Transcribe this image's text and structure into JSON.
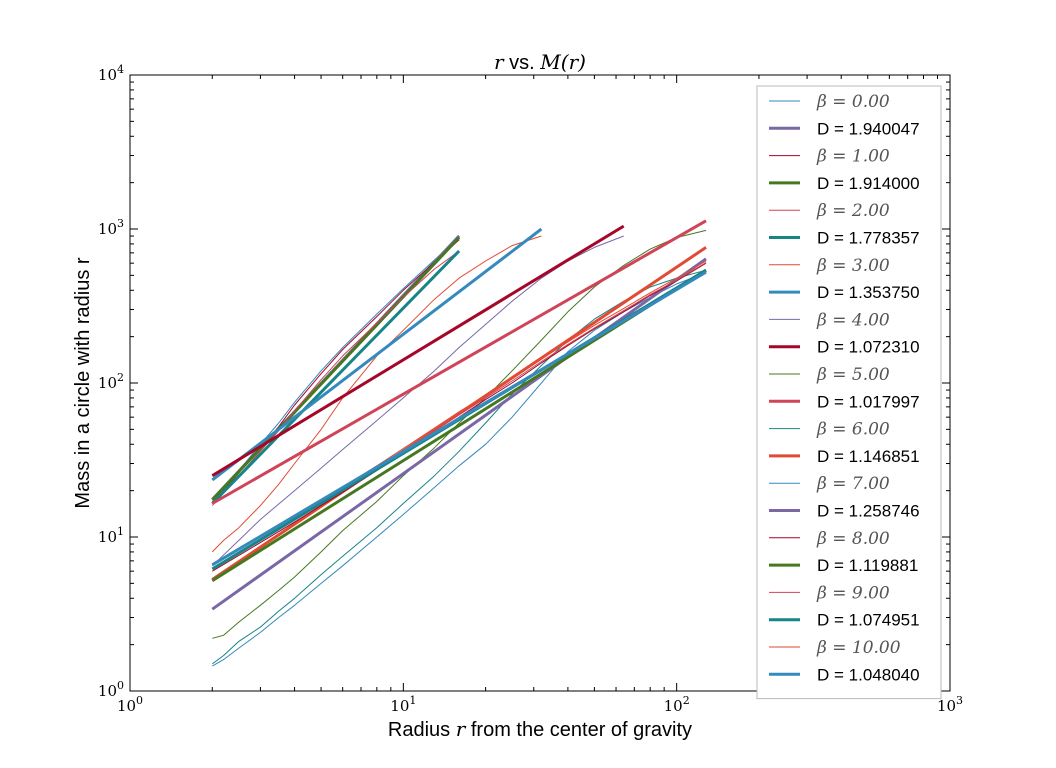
{
  "chart_data": {
    "type": "line",
    "title_parts": [
      "r",
      " vs. ",
      "M(r)"
    ],
    "xlabel_parts": [
      "Radius ",
      "r",
      " from the center of gravity"
    ],
    "ylabel": "Mass in a circle with radius r",
    "xscale": "log",
    "yscale": "log",
    "xlim": [
      1,
      1000
    ],
    "ylim": [
      1,
      10000
    ],
    "x_ticks": [
      {
        "value": 1,
        "base": "10",
        "exp": "0"
      },
      {
        "value": 10,
        "base": "10",
        "exp": "1"
      },
      {
        "value": 100,
        "base": "10",
        "exp": "2"
      },
      {
        "value": 1000,
        "base": "10",
        "exp": "3"
      }
    ],
    "y_ticks": [
      {
        "value": 1,
        "base": "10",
        "exp": "0"
      },
      {
        "value": 10,
        "base": "10",
        "exp": "1"
      },
      {
        "value": 100,
        "base": "10",
        "exp": "2"
      },
      {
        "value": 1000,
        "base": "10",
        "exp": "3"
      },
      {
        "value": 10000,
        "base": "10",
        "exp": "4"
      }
    ],
    "grid": false,
    "legend_position": "upper right",
    "series": [
      {
        "name": "β = 0.00",
        "kind": "data",
        "color": "#348ABD",
        "width": 1,
        "x": [
          2,
          2.5,
          3,
          3.5,
          4,
          5,
          6,
          8,
          10,
          13,
          16
        ],
        "y": [
          17,
          27,
          40,
          55,
          75,
          120,
          170,
          280,
          410,
          630,
          880
        ]
      },
      {
        "name": "D = 1.940047",
        "kind": "fit",
        "color": "#7A68A6",
        "width": 3,
        "x": [
          2,
          16
        ],
        "y": [
          17.5,
          902
        ]
      },
      {
        "name": "β = 1.00",
        "kind": "data",
        "color": "#A60628",
        "width": 1,
        "x": [
          2,
          2.5,
          3,
          3.5,
          4,
          5,
          6,
          8,
          10,
          13,
          16
        ],
        "y": [
          16.5,
          26,
          38,
          52,
          72,
          115,
          165,
          270,
          400,
          610,
          850
        ]
      },
      {
        "name": "D = 1.914000",
        "kind": "fit",
        "color": "#467821",
        "width": 3,
        "x": [
          2,
          16
        ],
        "y": [
          17.5,
          880
        ]
      },
      {
        "name": "β = 2.00",
        "kind": "data",
        "color": "#CF4457",
        "width": 1,
        "x": [
          2,
          2.5,
          3,
          3.5,
          4,
          5,
          6,
          8,
          10,
          13,
          16
        ],
        "y": [
          16,
          25,
          36,
          49,
          66,
          105,
          150,
          245,
          360,
          550,
          720
        ]
      },
      {
        "name": "D = 1.778357",
        "kind": "fit",
        "color": "#188487",
        "width": 3,
        "x": [
          2,
          16
        ],
        "y": [
          16.5,
          720
        ]
      },
      {
        "name": "β = 3.00",
        "kind": "data",
        "color": "#E24A33",
        "width": 1,
        "x": [
          2,
          2.2,
          2.5,
          3,
          3.5,
          4,
          5,
          6,
          8,
          10,
          13,
          16,
          20,
          25,
          32
        ],
        "y": [
          8,
          9.5,
          11.5,
          16,
          22,
          30,
          50,
          80,
          150,
          220,
          350,
          480,
          620,
          780,
          900
        ]
      },
      {
        "name": "D = 1.353750",
        "kind": "fit",
        "color": "#348ABD",
        "width": 3,
        "x": [
          2,
          32
        ],
        "y": [
          23.5,
          1000
        ]
      },
      {
        "name": "β = 4.00",
        "kind": "data",
        "color": "#7A68A6",
        "width": 1,
        "x": [
          2,
          2.5,
          3,
          4,
          5,
          6,
          8,
          10,
          13,
          16,
          20,
          25,
          32,
          40,
          50,
          64
        ],
        "y": [
          6.5,
          9.5,
          13,
          20,
          28,
          37,
          57,
          80,
          120,
          170,
          240,
          340,
          480,
          620,
          760,
          900
        ]
      },
      {
        "name": "D = 1.072310",
        "kind": "fit",
        "color": "#A60628",
        "width": 3,
        "x": [
          2,
          64
        ],
        "y": [
          25,
          1045
        ]
      },
      {
        "name": "β = 5.00",
        "kind": "data",
        "color": "#467821",
        "width": 1,
        "x": [
          2,
          2.2,
          2.5,
          3,
          3.5,
          4,
          5,
          6,
          8,
          10,
          13,
          16,
          20,
          25,
          32,
          40,
          50,
          64,
          80,
          100,
          128
        ],
        "y": [
          2.2,
          2.3,
          2.8,
          3.6,
          4.5,
          5.5,
          8,
          11,
          17,
          25,
          38,
          55,
          80,
          120,
          190,
          290,
          420,
          580,
          740,
          880,
          980
        ]
      },
      {
        "name": "D = 1.017997",
        "kind": "fit",
        "color": "#CF4457",
        "width": 3,
        "x": [
          2,
          128
        ],
        "y": [
          16.5,
          1130
        ]
      },
      {
        "name": "β = 6.00",
        "kind": "data",
        "color": "#188487",
        "width": 1,
        "x": [
          2,
          2.2,
          2.5,
          3,
          3.5,
          4,
          5,
          6,
          8,
          10,
          13,
          16,
          20,
          25,
          32,
          40,
          50,
          64,
          80,
          100,
          128
        ],
        "y": [
          1.5,
          1.7,
          2.1,
          2.6,
          3.3,
          4.0,
          5.7,
          7.5,
          11.5,
          16.5,
          25,
          36,
          55,
          85,
          130,
          190,
          260,
          340,
          420,
          480,
          540
        ]
      },
      {
        "name": "D = 1.146851",
        "kind": "fit",
        "color": "#E24A33",
        "width": 3,
        "x": [
          2,
          128
        ],
        "y": [
          5.3,
          760
        ]
      },
      {
        "name": "β = 7.00",
        "kind": "data",
        "color": "#348ABD",
        "width": 1,
        "x": [
          2,
          2.2,
          2.5,
          3,
          3.5,
          4,
          5,
          6,
          8,
          10,
          13,
          16,
          20,
          25,
          32,
          40,
          50,
          64,
          80,
          100,
          128
        ],
        "y": [
          1.45,
          1.6,
          1.9,
          2.4,
          3.0,
          3.6,
          5.0,
          6.5,
          10,
          14,
          21,
          29,
          40,
          60,
          100,
          160,
          220,
          290,
          360,
          440,
          520
        ]
      },
      {
        "name": "D = 1.258746",
        "kind": "fit",
        "color": "#7A68A6",
        "width": 3,
        "x": [
          2,
          128
        ],
        "y": [
          3.4,
          640
        ]
      },
      {
        "name": "β = 8.00",
        "kind": "data",
        "color": "#A60628",
        "width": 1,
        "x": [
          2,
          2.5,
          3,
          4,
          5,
          6,
          8,
          10,
          13,
          16,
          20,
          25,
          32,
          40,
          50,
          64,
          80,
          100,
          128
        ],
        "y": [
          6,
          7.6,
          9.2,
          12.5,
          16,
          19.5,
          27,
          35,
          47,
          60,
          78,
          100,
          135,
          175,
          225,
          290,
          370,
          460,
          600
        ]
      },
      {
        "name": "D = 1.119881",
        "kind": "fit",
        "color": "#467821",
        "width": 3,
        "x": [
          2,
          128
        ],
        "y": [
          5.2,
          540
        ]
      },
      {
        "name": "β = 9.00",
        "kind": "data",
        "color": "#CF4457",
        "width": 1,
        "x": [
          2,
          2.5,
          3,
          4,
          5,
          6,
          8,
          10,
          13,
          16,
          20,
          25,
          32,
          40,
          50,
          64,
          80,
          100,
          128
        ],
        "y": [
          6.3,
          7.9,
          9.6,
          13,
          16.5,
          20,
          28,
          36,
          49,
          62,
          80,
          103,
          138,
          178,
          228,
          295,
          375,
          465,
          605
        ]
      },
      {
        "name": "D = 1.074951",
        "kind": "fit",
        "color": "#188487",
        "width": 3,
        "x": [
          2,
          128
        ],
        "y": [
          6.2,
          540
        ]
      },
      {
        "name": "β = 10.00",
        "kind": "data",
        "color": "#E24A33",
        "width": 1,
        "x": [
          2,
          2.5,
          3,
          4,
          5,
          6,
          8,
          10,
          13,
          16,
          20,
          25,
          32,
          40,
          50,
          64,
          80,
          100,
          128
        ],
        "y": [
          6.6,
          8.3,
          10,
          13.5,
          17.2,
          21,
          29,
          37.5,
          51,
          65,
          83,
          107,
          143,
          185,
          237,
          305,
          385,
          480,
          620
        ]
      },
      {
        "name": "D = 1.048040",
        "kind": "fit",
        "color": "#348ABD",
        "width": 3,
        "x": [
          2,
          128
        ],
        "y": [
          6.6,
          525
        ]
      }
    ]
  }
}
